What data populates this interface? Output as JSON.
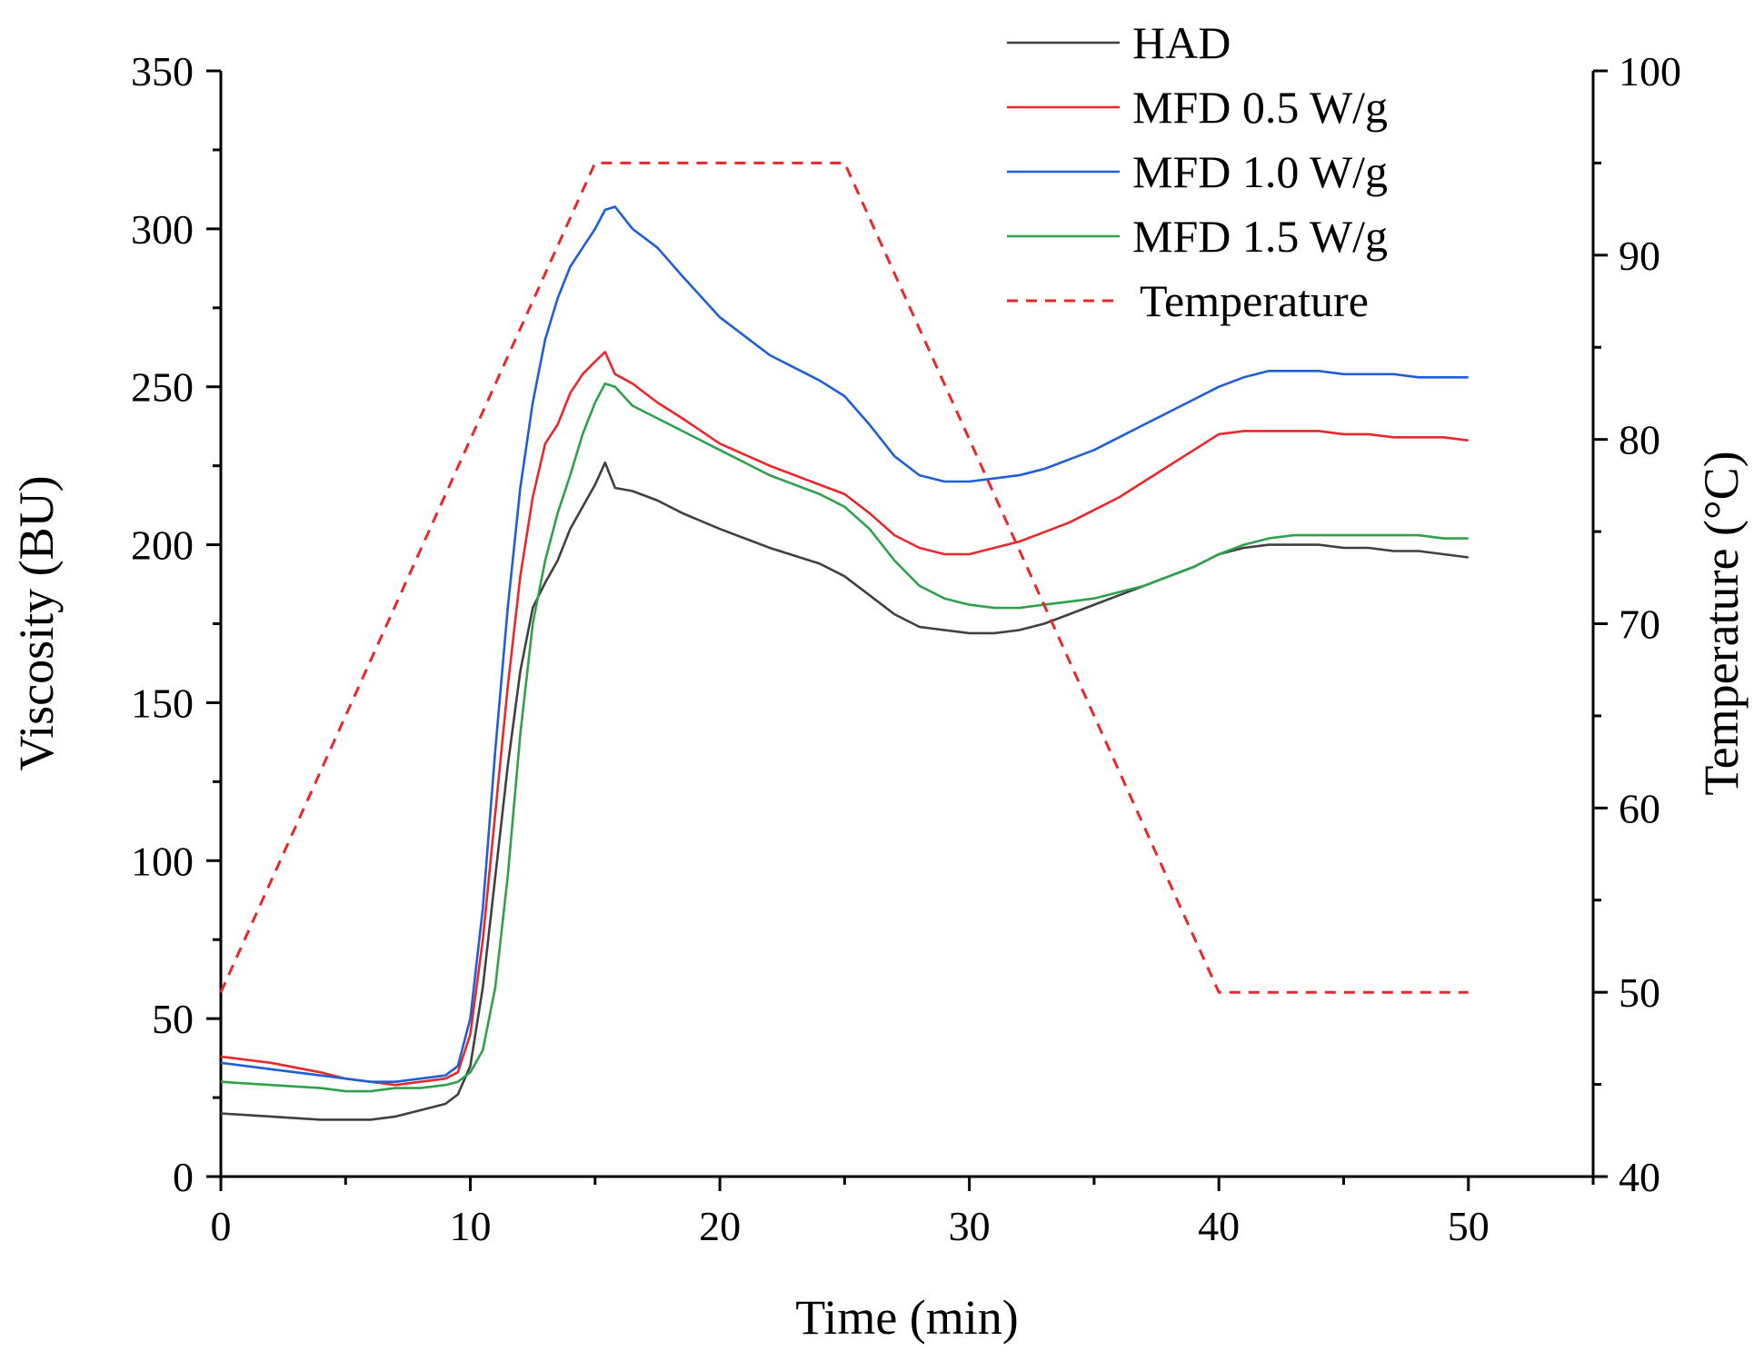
{
  "chart_data": {
    "type": "line",
    "xlabel": "Time (min)",
    "ylabel": "Viscosity (BU)",
    "y2label": "Temperature (°C)",
    "xlim": [
      0,
      55
    ],
    "ylim": [
      0,
      350
    ],
    "y2lim": [
      40,
      100
    ],
    "xticks": [
      "0",
      "10",
      "20",
      "30",
      "40",
      "50"
    ],
    "yticks": [
      "0",
      "50",
      "100",
      "150",
      "200",
      "250",
      "300",
      "350"
    ],
    "y2ticks": [
      "40",
      "50",
      "60",
      "70",
      "80",
      "90",
      "100"
    ],
    "grid": false,
    "legend_position": "top-right",
    "series": [
      {
        "name": "HAD",
        "axis": "left",
        "color": "#404040",
        "style": "solid",
        "x": [
          0,
          2,
          4,
          6,
          7,
          8,
          9,
          9.5,
          10,
          10.5,
          11,
          11.5,
          12,
          12.5,
          13,
          13.5,
          14,
          14.5,
          15,
          15.4,
          15.8,
          16.5,
          17.5,
          18.5,
          20,
          22,
          24,
          25,
          26,
          27,
          28,
          29,
          30,
          31,
          32,
          33,
          34,
          35,
          36,
          37,
          38,
          39,
          40,
          41,
          42,
          43,
          44,
          45,
          46,
          47,
          48,
          49,
          50
        ],
        "y": [
          20,
          19,
          18,
          18,
          19,
          21,
          23,
          26,
          35,
          60,
          95,
          130,
          160,
          180,
          188,
          195,
          205,
          212,
          219,
          226,
          218,
          217,
          214,
          210,
          205,
          199,
          194,
          190,
          184,
          178,
          174,
          173,
          172,
          172,
          173,
          175,
          178,
          181,
          184,
          187,
          190,
          193,
          197,
          199,
          200,
          200,
          200,
          199,
          199,
          198,
          198,
          197,
          196
        ]
      },
      {
        "name": "MFD 0.5 W/g",
        "axis": "left",
        "color": "#e8282a",
        "style": "solid",
        "x": [
          0,
          2,
          4,
          5,
          6,
          7,
          8,
          9,
          9.5,
          10,
          10.5,
          11,
          11.5,
          12,
          12.5,
          13,
          13.5,
          14,
          14.5,
          15,
          15.4,
          15.8,
          16.5,
          17.5,
          18.5,
          20,
          22,
          24,
          25,
          26,
          27,
          28,
          29,
          30,
          31,
          32,
          33,
          34,
          35,
          36,
          37,
          38,
          39,
          40,
          41,
          42,
          43,
          44,
          45,
          46,
          47,
          48,
          49,
          50
        ],
        "y": [
          38,
          36,
          33,
          31,
          30,
          29,
          30,
          31,
          33,
          45,
          75,
          115,
          155,
          190,
          215,
          232,
          238,
          248,
          254,
          258,
          261,
          254,
          251,
          245,
          240,
          232,
          225,
          219,
          216,
          210,
          203,
          199,
          197,
          197,
          199,
          201,
          204,
          207,
          211,
          215,
          220,
          225,
          230,
          235,
          236,
          236,
          236,
          236,
          235,
          235,
          234,
          234,
          234,
          233
        ]
      },
      {
        "name": "MFD 1.0 W/g",
        "axis": "left",
        "color": "#1f5fd6",
        "style": "solid",
        "x": [
          0,
          2,
          4,
          5,
          6,
          7,
          8,
          9,
          9.5,
          10,
          10.5,
          11,
          11.5,
          12,
          12.5,
          13,
          13.5,
          14,
          14.5,
          15,
          15.4,
          15.8,
          16.5,
          17.5,
          18.5,
          20,
          22,
          24,
          25,
          26,
          27,
          28,
          29,
          30,
          31,
          32,
          33,
          34,
          35,
          36,
          37,
          38,
          39,
          40,
          41,
          42,
          43,
          44,
          45,
          46,
          47,
          48,
          49,
          50
        ],
        "y": [
          36,
          34,
          32,
          31,
          30,
          30,
          31,
          32,
          35,
          50,
          85,
          135,
          180,
          218,
          245,
          265,
          278,
          288,
          294,
          300,
          306,
          307,
          300,
          294,
          285,
          272,
          260,
          252,
          247,
          238,
          228,
          222,
          220,
          220,
          221,
          222,
          224,
          227,
          230,
          234,
          238,
          242,
          246,
          250,
          253,
          255,
          255,
          255,
          254,
          254,
          254,
          253,
          253,
          253
        ]
      },
      {
        "name": "MFD 1.5 W/g",
        "axis": "left",
        "color": "#2ea24a",
        "style": "solid",
        "x": [
          0,
          2,
          4,
          5,
          6,
          7,
          8,
          9,
          9.5,
          10,
          10.5,
          11,
          11.5,
          12,
          12.5,
          13,
          13.5,
          14,
          14.5,
          15,
          15.4,
          15.8,
          16.5,
          17.5,
          18.5,
          20,
          22,
          24,
          25,
          26,
          27,
          28,
          29,
          30,
          31,
          32,
          33,
          34,
          35,
          36,
          37,
          38,
          39,
          40,
          41,
          42,
          43,
          44,
          45,
          46,
          47,
          48,
          49,
          50
        ],
        "y": [
          30,
          29,
          28,
          27,
          27,
          28,
          28,
          29,
          30,
          33,
          40,
          60,
          95,
          140,
          175,
          195,
          210,
          222,
          235,
          245,
          251,
          250,
          244,
          240,
          236,
          230,
          222,
          216,
          212,
          205,
          195,
          187,
          183,
          181,
          180,
          180,
          181,
          182,
          183,
          185,
          187,
          190,
          193,
          197,
          200,
          202,
          203,
          203,
          203,
          203,
          203,
          203,
          202,
          202
        ]
      },
      {
        "name": "Temperature",
        "axis": "right",
        "color": "#e8282a",
        "style": "dashed",
        "x": [
          0,
          15,
          25,
          40,
          50
        ],
        "y": [
          50,
          95,
          95,
          50,
          50
        ]
      }
    ]
  }
}
